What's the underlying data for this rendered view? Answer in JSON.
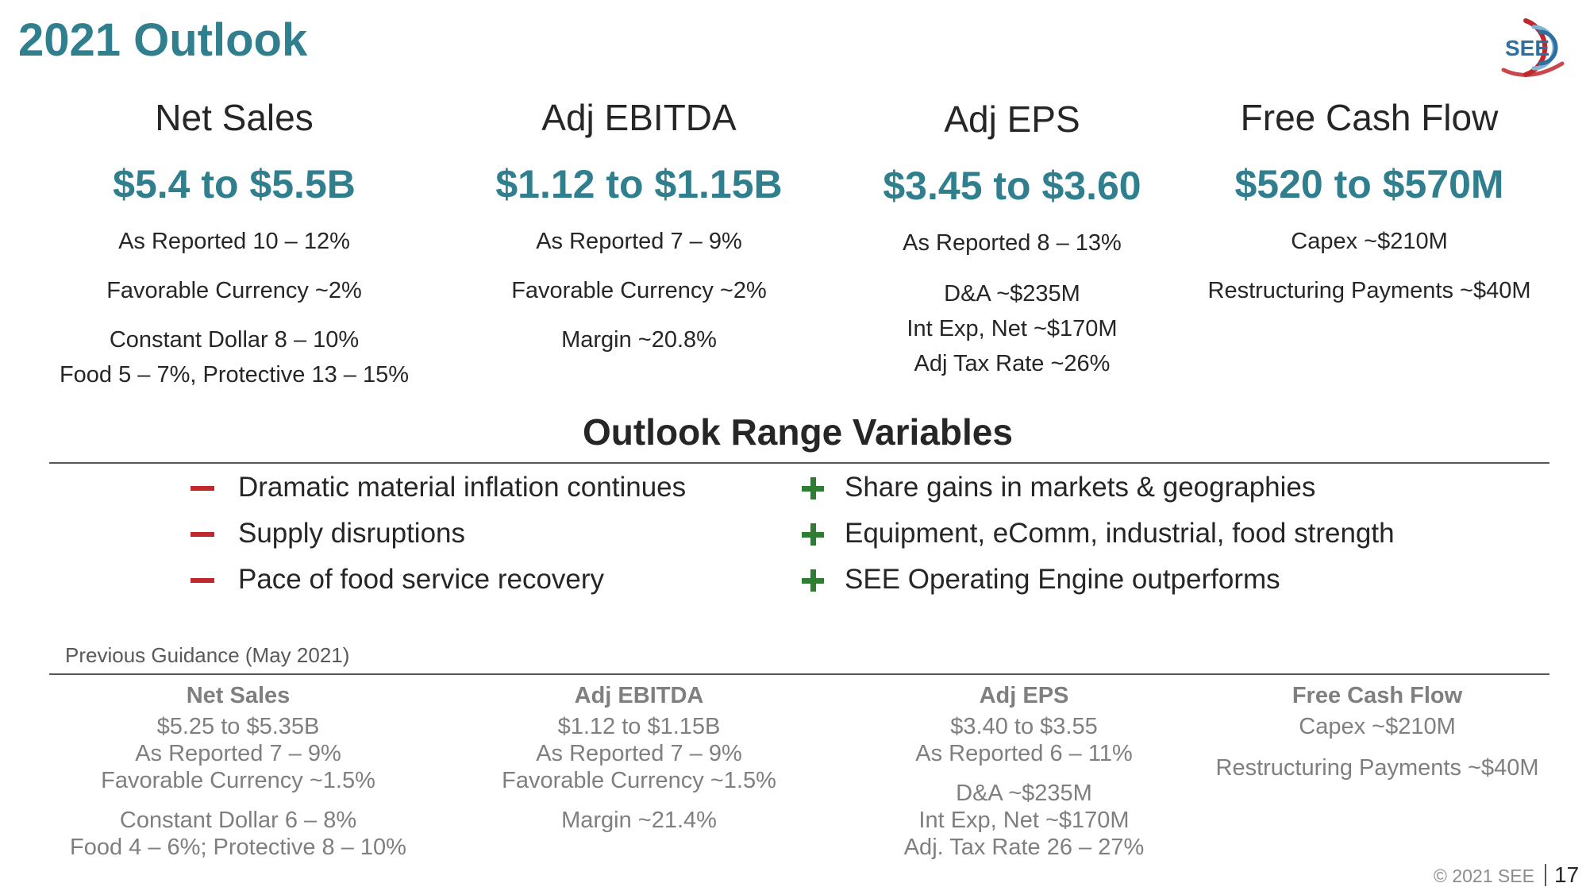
{
  "slide": {
    "title": "2021 Outlook",
    "logo_text": "SEE",
    "copyright": "© 2021 SEE",
    "page_number": "17"
  },
  "outlook": [
    {
      "name": "Net Sales",
      "value": "$5.4 to $5.5B",
      "details": [
        "As Reported 10 – 12%",
        "Favorable Currency ~2%",
        "Constant Dollar 8 – 10%",
        "Food 5 – 7%, Protective 13 – 15%"
      ]
    },
    {
      "name": "Adj EBITDA",
      "value": "$1.12 to $1.15B",
      "details": [
        "As Reported 7 – 9%",
        "Favorable Currency ~2%",
        "Margin ~20.8%"
      ]
    },
    {
      "name": "Adj EPS",
      "value": "$3.45 to $3.60",
      "details": [
        "As Reported 8 – 13%",
        "D&A ~$235M",
        "Int Exp, Net ~$170M",
        "Adj Tax Rate ~26%"
      ]
    },
    {
      "name": "Free Cash Flow",
      "value": "$520 to $570M",
      "details": [
        "Capex ~$210M",
        "Restructuring Payments ~$40M"
      ]
    }
  ],
  "range_variables": {
    "title": "Outlook Range Variables",
    "negatives": [
      "Dramatic material inflation continues",
      "Supply disruptions",
      "Pace of food service recovery"
    ],
    "positives": [
      "Share gains in markets & geographies",
      "Equipment, eComm, industrial, food strength",
      "SEE Operating Engine outperforms"
    ],
    "negative_color": "#c0282e",
    "positive_color": "#2e7d32"
  },
  "previous_guidance": {
    "label": "Previous Guidance (May 2021)",
    "columns": [
      {
        "name": "Net Sales",
        "lines": [
          "$5.25 to $5.35B",
          "As Reported 7 – 9%",
          "Favorable Currency ~1.5%",
          "Constant Dollar 6 – 8%",
          "Food 4 – 6%; Protective 8 – 10%"
        ]
      },
      {
        "name": "Adj EBITDA",
        "lines": [
          "$1.12 to $1.15B",
          "As Reported 7 – 9%",
          "Favorable Currency ~1.5%",
          "Margin ~21.4%"
        ]
      },
      {
        "name": "Adj EPS",
        "lines": [
          "$3.40 to $3.55",
          "As Reported 6 – 11%",
          "D&A ~$235M",
          "Int Exp, Net ~$170M",
          "Adj. Tax Rate 26 – 27%"
        ]
      },
      {
        "name": "Free Cash Flow",
        "lines": [
          "Capex ~$210M",
          "Restructuring Payments ~$40M"
        ]
      }
    ]
  },
  "colors": {
    "accent_teal": "#2f7f8e",
    "logo_red": "#c0282e",
    "logo_blue": "#2d6f9e"
  }
}
